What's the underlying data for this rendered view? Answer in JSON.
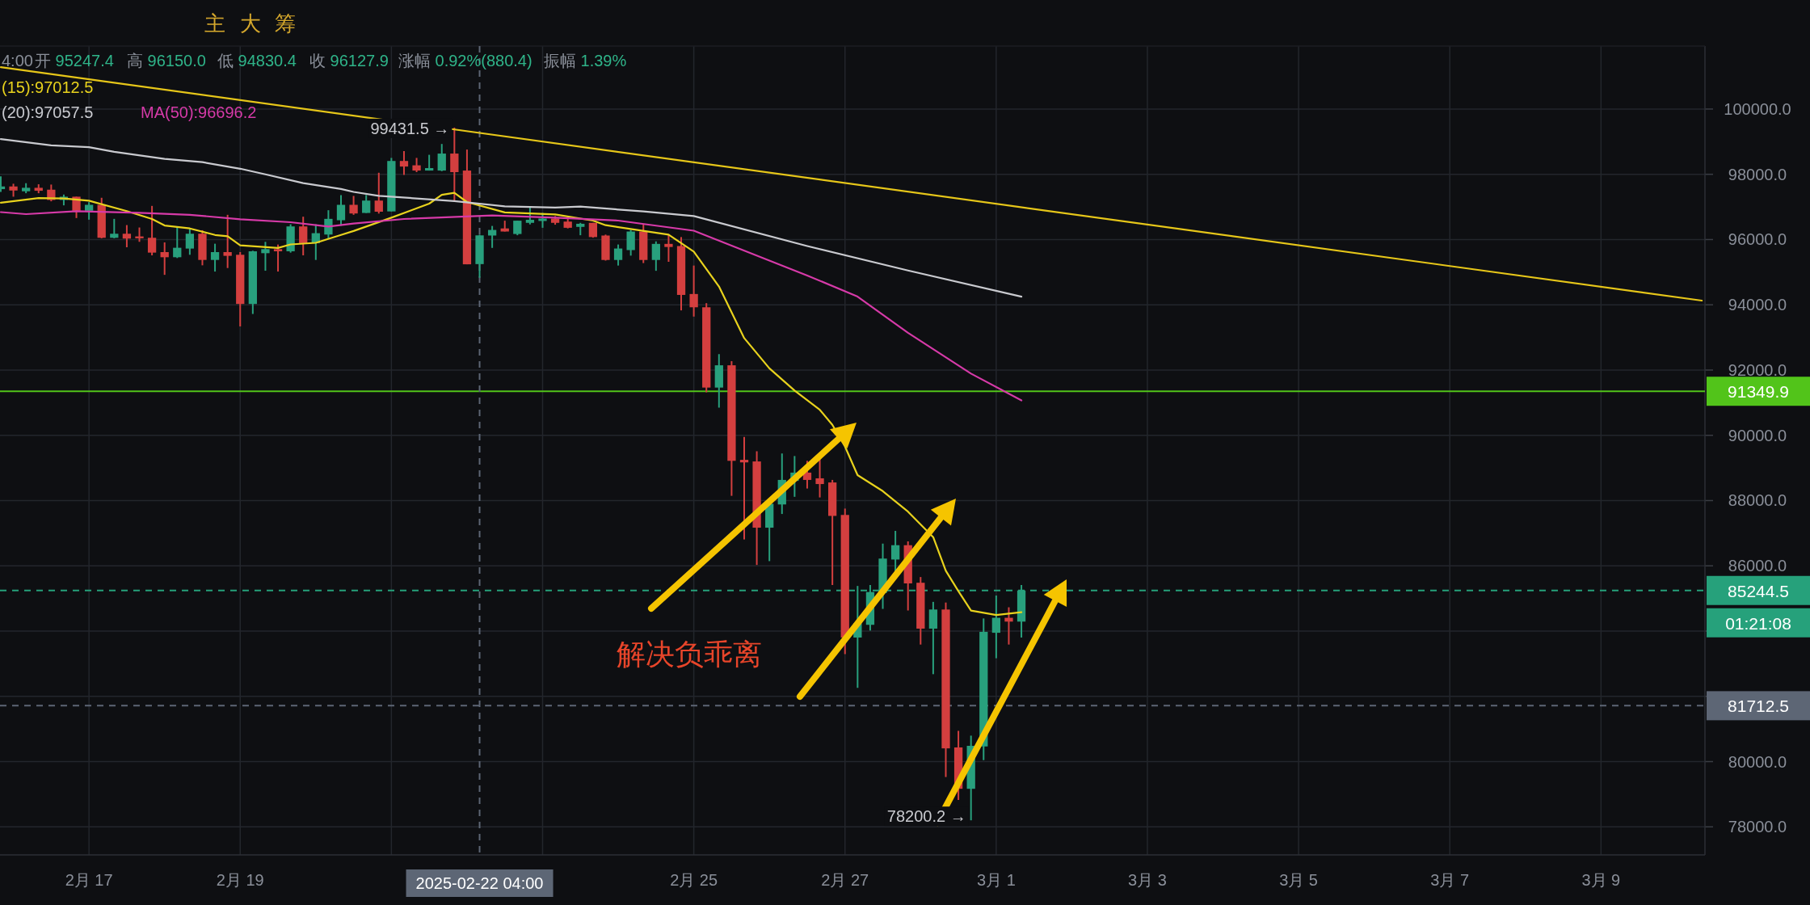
{
  "chart_data": {
    "type": "candlestick",
    "x": [
      "2025-02-15T20:00",
      "2025-02-16T00:00",
      "2025-02-16T04:00",
      "2025-02-16T08:00",
      "2025-02-16T12:00",
      "2025-02-16T16:00",
      "2025-02-16T20:00",
      "2025-02-17T00:00",
      "2025-02-17T04:00",
      "2025-02-17T08:00",
      "2025-02-17T12:00",
      "2025-02-17T16:00",
      "2025-02-17T20:00",
      "2025-02-18T00:00",
      "2025-02-18T04:00",
      "2025-02-18T08:00",
      "2025-02-18T12:00",
      "2025-02-18T16:00",
      "2025-02-18T20:00",
      "2025-02-19T00:00",
      "2025-02-19T04:00",
      "2025-02-19T08:00",
      "2025-02-19T12:00",
      "2025-02-19T16:00",
      "2025-02-19T20:00",
      "2025-02-20T00:00",
      "2025-02-20T04:00",
      "2025-02-20T08:00",
      "2025-02-20T12:00",
      "2025-02-20T16:00",
      "2025-02-20T20:00",
      "2025-02-21T00:00",
      "2025-02-21T04:00",
      "2025-02-21T08:00",
      "2025-02-21T12:00",
      "2025-02-21T16:00",
      "2025-02-21T20:00",
      "2025-02-22T00:00",
      "2025-02-22T04:00",
      "2025-02-22T08:00",
      "2025-02-22T12:00",
      "2025-02-22T16:00",
      "2025-02-22T20:00",
      "2025-02-23T00:00",
      "2025-02-23T04:00",
      "2025-02-23T08:00",
      "2025-02-23T12:00",
      "2025-02-23T16:00",
      "2025-02-23T20:00",
      "2025-02-24T00:00",
      "2025-02-24T04:00",
      "2025-02-24T08:00",
      "2025-02-24T12:00",
      "2025-02-24T16:00",
      "2025-02-24T20:00",
      "2025-02-25T00:00",
      "2025-02-25T04:00",
      "2025-02-25T08:00",
      "2025-02-25T12:00",
      "2025-02-25T16:00",
      "2025-02-25T20:00",
      "2025-02-26T00:00",
      "2025-02-26T04:00",
      "2025-02-26T08:00",
      "2025-02-26T12:00",
      "2025-02-26T16:00",
      "2025-02-26T20:00",
      "2025-02-27T00:00",
      "2025-02-27T04:00",
      "2025-02-27T08:00",
      "2025-02-27T12:00",
      "2025-02-27T16:00",
      "2025-02-27T20:00",
      "2025-02-28T00:00",
      "2025-02-28T04:00",
      "2025-02-28T08:00",
      "2025-02-28T12:00",
      "2025-02-28T16:00",
      "2025-02-28T20:00",
      "2025-03-01T00:00",
      "2025-03-01T04:00",
      "2025-03-01T08:00"
    ],
    "ohlc": [
      [
        97545,
        97934,
        97462,
        97627
      ],
      [
        97627,
        97710,
        97313,
        97503
      ],
      [
        97479,
        97727,
        97420,
        97586
      ],
      [
        97586,
        97694,
        97420,
        97495
      ],
      [
        97528,
        97685,
        97172,
        97213
      ],
      [
        97213,
        97379,
        97048,
        97313
      ],
      [
        97313,
        97313,
        96659,
        96882
      ],
      [
        96882,
        97147,
        96609,
        97064
      ],
      [
        97064,
        97280,
        96038,
        96054
      ],
      [
        96054,
        96634,
        96038,
        96178
      ],
      [
        96178,
        96443,
        95764,
        96029
      ],
      [
        96096,
        96369,
        95930,
        96038
      ],
      [
        96054,
        97031,
        95516,
        95599
      ],
      [
        95615,
        95913,
        94918,
        95458
      ],
      [
        95458,
        96402,
        95433,
        95748
      ],
      [
        95723,
        96327,
        95533,
        96178
      ],
      [
        96178,
        96286,
        95210,
        95375
      ],
      [
        95375,
        95872,
        95019,
        95615
      ],
      [
        95615,
        96758,
        95127,
        95500
      ],
      [
        95533,
        95615,
        93338,
        94026
      ],
      [
        94026,
        95657,
        93719,
        95640
      ],
      [
        95582,
        95930,
        95044,
        95706
      ],
      [
        95706,
        95847,
        95019,
        95640
      ],
      [
        95640,
        96468,
        95599,
        96402
      ],
      [
        96402,
        96700,
        95516,
        95889
      ],
      [
        95889,
        96468,
        95375,
        96195
      ],
      [
        96153,
        96899,
        96038,
        96634
      ],
      [
        96592,
        97362,
        96427,
        97064
      ],
      [
        97064,
        97337,
        96758,
        96799
      ],
      [
        96815,
        97365,
        96815,
        97194
      ],
      [
        97194,
        98047,
        96796,
        96853
      ],
      [
        96862,
        98502,
        96862,
        98408
      ],
      [
        98408,
        98711,
        97981,
        98237
      ],
      [
        98275,
        98502,
        98066,
        98114
      ],
      [
        98114,
        98597,
        98114,
        98190
      ],
      [
        98114,
        98929,
        98095,
        98635
      ],
      [
        98635,
        99431.5,
        97194,
        98066
      ],
      [
        98114,
        98758,
        95241,
        95241
      ],
      [
        95247.4,
        96150.0,
        94830.4,
        96127.9
      ],
      [
        96123,
        96417,
        95744,
        96294
      ],
      [
        96341,
        96578,
        96246,
        96246
      ],
      [
        96170,
        96578,
        96132,
        96578
      ],
      [
        96512,
        97005,
        96464,
        96606
      ],
      [
        96569,
        96815,
        96360,
        96644
      ],
      [
        96644,
        96720,
        96455,
        96512
      ],
      [
        96550,
        96673,
        96341,
        96360
      ],
      [
        96388,
        96512,
        96132,
        96483
      ],
      [
        96512,
        96512,
        96057,
        96076
      ],
      [
        96123,
        96151,
        95355,
        95374
      ],
      [
        95374,
        95848,
        95203,
        95725
      ],
      [
        95677,
        96294,
        95507,
        96246
      ],
      [
        96246,
        96483,
        95279,
        95374
      ],
      [
        95374,
        95943,
        95042,
        95867
      ],
      [
        95867,
        96151,
        95317,
        95772
      ],
      [
        95801,
        96076,
        93829,
        94303
      ],
      [
        94331,
        95203,
        93639,
        93924
      ],
      [
        93924,
        94050,
        91317,
        91463
      ],
      [
        91463,
        92488,
        90848,
        92146
      ],
      [
        92146,
        92273,
        88145,
        89218
      ],
      [
        89248,
        89950,
        86808,
        89170
      ],
      [
        89199,
        89511,
        86027,
        87169
      ],
      [
        87169,
        87901,
        86144,
        87901
      ],
      [
        87881,
        89443,
        87589,
        88633
      ],
      [
        88603,
        89365,
        88115,
        88857
      ],
      [
        88857,
        89218,
        88369,
        88633
      ],
      [
        88682,
        89267,
        88096,
        88506
      ],
      [
        88555,
        88633,
        85412,
        87530
      ],
      [
        87559,
        87754,
        83294,
        83802
      ],
      [
        83802,
        85383,
        82260,
        84241
      ],
      [
        84192,
        85412,
        84016,
        85197
      ],
      [
        85168,
        86681,
        84680,
        86222
      ],
      [
        86193,
        87071,
        85822,
        86632
      ],
      [
        86632,
        86749,
        84631,
        85461
      ],
      [
        85481,
        85656,
        83587,
        84075
      ],
      [
        84075,
        84895,
        82679,
        84661
      ],
      [
        84661,
        84875,
        79527,
        80405
      ],
      [
        80434,
        80942,
        78824,
        79166
      ],
      [
        79166,
        80795,
        78200.2,
        80483
      ],
      [
        80464,
        84387,
        80044,
        83977
      ],
      [
        83948,
        85090,
        83167,
        84407
      ],
      [
        84407,
        84729,
        83587,
        84290
      ],
      [
        84290,
        85412,
        83802,
        85244.5
      ]
    ],
    "series": [
      {
        "type": "line",
        "name": "(15):97012.5",
        "color": "#e8d21d",
        "x": [
          "2025-02-15T20:00",
          "2025-02-16T08:00",
          "2025-02-16T16:00",
          "2025-02-17T00:00",
          "2025-02-17T12:00",
          "2025-02-17T20:00",
          "2025-02-18T00:00",
          "2025-02-18T08:00",
          "2025-02-18T16:00",
          "2025-02-18T20:00",
          "2025-02-19T00:00",
          "2025-02-19T12:00",
          "2025-02-19T16:00",
          "2025-02-20T00:00",
          "2025-02-20T08:00",
          "2025-02-20T12:00",
          "2025-02-21T00:00",
          "2025-02-21T12:00",
          "2025-02-21T16:00",
          "2025-02-21T20:00",
          "2025-02-22T00:00",
          "2025-02-22T12:00",
          "2025-02-23T04:00",
          "2025-02-23T16:00",
          "2025-02-23T20:00",
          "2025-02-24T16:00",
          "2025-02-25T00:00",
          "2025-02-25T08:00",
          "2025-02-25T16:00",
          "2025-02-26T00:00",
          "2025-02-26T08:00",
          "2025-02-26T16:00",
          "2025-02-26T20:00",
          "2025-02-27T00:00",
          "2025-02-27T04:00",
          "2025-02-27T12:00",
          "2025-02-27T20:00",
          "2025-02-28T04:00",
          "2025-02-28T08:00",
          "2025-02-28T12:00",
          "2025-02-28T16:00",
          "2025-03-01T00:00",
          "2025-03-01T08:00"
        ],
        "values": [
          97130,
          97270,
          97260,
          97190,
          96870,
          96630,
          96430,
          96340,
          96140,
          96100,
          95820,
          95740,
          95850,
          95900,
          96140,
          96260,
          96670,
          97100,
          97370,
          97430,
          97150,
          96830,
          96770,
          96580,
          96440,
          96150,
          95630,
          94560,
          92980,
          92050,
          91370,
          90780,
          90320,
          89660,
          88780,
          88290,
          87660,
          86880,
          85850,
          85220,
          84630,
          84490,
          84580
        ]
      },
      {
        "type": "line",
        "name": "(20):97057.5",
        "color": "#c9cacf",
        "x": [
          "2025-02-15T20:00",
          "2025-02-16T12:00",
          "2025-02-17T00:00",
          "2025-02-17T08:00",
          "2025-02-18T00:00",
          "2025-02-18T12:00",
          "2025-02-19T00:00",
          "2025-02-19T08:00",
          "2025-02-19T20:00",
          "2025-02-20T08:00",
          "2025-02-20T12:00",
          "2025-02-20T20:00",
          "2025-02-21T20:00",
          "2025-02-22T12:00",
          "2025-02-23T04:00",
          "2025-02-23T12:00",
          "2025-02-24T08:00",
          "2025-02-25T00:00",
          "2025-02-26T12:00",
          "2025-02-27T20:00",
          "2025-03-01T08:00"
        ],
        "values": [
          99080,
          98890,
          98830,
          98690,
          98470,
          98370,
          98170,
          98000,
          97730,
          97550,
          97460,
          97340,
          97180,
          97020,
          96980,
          97010,
          96860,
          96720,
          95800,
          95050,
          94250
        ]
      },
      {
        "type": "line",
        "name": "MA(50):96696.2",
        "color": "#d63aa8",
        "x": [
          "2025-02-15T20:00",
          "2025-02-16T04:00",
          "2025-02-16T20:00",
          "2025-02-17T16:00",
          "2025-02-18T08:00",
          "2025-02-19T00:00",
          "2025-02-19T16:00",
          "2025-02-20T04:00",
          "2025-02-20T12:00",
          "2025-02-21T04:00",
          "2025-02-22T08:00",
          "2025-02-23T04:00",
          "2025-02-24T00:00",
          "2025-02-25T00:00",
          "2025-02-26T12:00",
          "2025-02-27T04:00",
          "2025-02-27T20:00",
          "2025-02-28T16:00",
          "2025-03-01T08:00"
        ],
        "values": [
          96840,
          96780,
          96870,
          96820,
          96760,
          96620,
          96530,
          96400,
          96490,
          96630,
          96740,
          96670,
          96580,
          96270,
          94900,
          94250,
          93140,
          91890,
          91070
        ]
      },
      {
        "type": "line",
        "color": "#e6c619",
        "x": [
          "2025-02-15T20:00",
          "2025-03-10T08:00"
        ],
        "values": [
          101280,
          94130
        ]
      }
    ],
    "xlim": [
      "2025-02-15T19:45",
      "2025-03-10T09:00"
    ],
    "ylim": [
      77140,
      101930
    ],
    "xticks": [
      {
        "value": "2025-02-17",
        "label": "2月 17"
      },
      {
        "value": "2025-02-19",
        "label": "2月 19"
      },
      {
        "value": "2025-02-21",
        "label": null
      },
      {
        "value": "2025-02-23",
        "label": null
      },
      {
        "value": "2025-02-25",
        "label": "2月 25"
      },
      {
        "value": "2025-02-27",
        "label": "2月 27"
      },
      {
        "value": "2025-03-01",
        "label": "3月 1"
      },
      {
        "value": "2025-03-03",
        "label": "3月 3"
      },
      {
        "value": "2025-03-05",
        "label": "3月 5"
      },
      {
        "value": "2025-03-07",
        "label": "3月 7"
      },
      {
        "value": "2025-03-09",
        "label": "3月 9"
      }
    ],
    "yticks": [
      {
        "value": 78000,
        "label": "78000.0"
      },
      {
        "value": 80000,
        "label": "80000.0"
      },
      {
        "value": 82000,
        "label": null
      },
      {
        "value": 84000,
        "label": null
      },
      {
        "value": 86000,
        "label": "86000.0"
      },
      {
        "value": 88000,
        "label": "88000.0"
      },
      {
        "value": 90000,
        "label": "90000.0"
      },
      {
        "value": 92000,
        "label": "92000.0"
      },
      {
        "value": 94000,
        "label": "94000.0"
      },
      {
        "value": 96000,
        "label": "96000.0"
      },
      {
        "value": 98000,
        "label": "98000.0"
      },
      {
        "value": 100000,
        "label": "100000.0"
      }
    ],
    "grid": true,
    "ref_lines": [
      {
        "axis": "y",
        "value": 91349.9,
        "label": "91349.9",
        "color": "#52c41a",
        "line_style": "solid"
      },
      {
        "axis": "y",
        "value": 85244.5,
        "label": "85244.5",
        "color": "#26a17b",
        "line_style": "dashed"
      },
      {
        "axis": "y",
        "value": 81712.5,
        "label": "81712.5",
        "color": "#5d6675",
        "line_style": "dashed"
      },
      {
        "axis": "x",
        "value": "2025-02-22T04:00",
        "label": "2025-02-22 04:00",
        "color": "#5d6675",
        "line_style": "dashed"
      }
    ],
    "annotations": [
      "主",
      "大",
      "筹",
      "4:00",
      "开 95247.4",
      "高 96150.0",
      "低 94830.4",
      "收 96127.9",
      "涨幅 0.92%(880.4)",
      "振幅 1.39%",
      "解决负乖离",
      {
        "text": "99431.5 →",
        "x": "2025-02-21T20:00",
        "y": 99431.5
      },
      {
        "text": "78200.2 →",
        "x": "2025-02-28T16:00",
        "y": 78200.2
      },
      "01:21:08"
    ]
  }
}
